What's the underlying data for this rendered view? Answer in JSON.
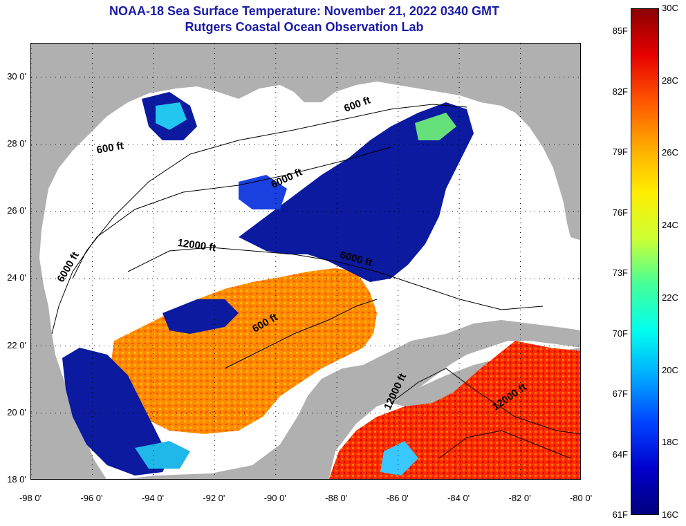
{
  "header": {
    "title": "NOAA-18 Sea Surface Temperature:  November 21, 2022 0340 GMT",
    "subtitle": "Rutgers Coastal Ocean Observation Lab"
  },
  "map": {
    "lon_range": [
      -98,
      -80
    ],
    "lat_range": [
      18,
      31
    ],
    "lat_ticks": [
      {
        "value": 18,
        "label": "18 0'"
      },
      {
        "value": 20,
        "label": "20 0'"
      },
      {
        "value": 22,
        "label": "22 0'"
      },
      {
        "value": 24,
        "label": "24 0'"
      },
      {
        "value": 26,
        "label": "26 0'"
      },
      {
        "value": 28,
        "label": "28 0'"
      },
      {
        "value": 30,
        "label": "30 0'"
      }
    ],
    "lon_ticks": [
      {
        "value": -98,
        "label": "-98 0'"
      },
      {
        "value": -96,
        "label": "-96 0'"
      },
      {
        "value": -94,
        "label": "-94 0'"
      },
      {
        "value": -92,
        "label": "-92 0'"
      },
      {
        "value": -90,
        "label": "-90 0'"
      },
      {
        "value": -88,
        "label": "-88 0'"
      },
      {
        "value": -86,
        "label": "-86 0'"
      },
      {
        "value": -84,
        "label": "-84 0'"
      },
      {
        "value": -82,
        "label": "-82 0'"
      },
      {
        "value": -80,
        "label": "-80 0'"
      }
    ],
    "depth_labels": [
      {
        "text": "600 ft",
        "lon": -87.3,
        "lat": 29.1,
        "angle": -20
      },
      {
        "text": "600 ft",
        "lon": -95.4,
        "lat": 27.8,
        "angle": -10
      },
      {
        "text": "6000 ft",
        "lon": -89.6,
        "lat": 26.9,
        "angle": -25
      },
      {
        "text": "12000 ft",
        "lon": -92.6,
        "lat": 24.9,
        "angle": 8
      },
      {
        "text": "6000 ft",
        "lon": -96.7,
        "lat": 24.3,
        "angle": -60
      },
      {
        "text": "6000 ft",
        "lon": -87.4,
        "lat": 24.5,
        "angle": 15
      },
      {
        "text": "600 ft",
        "lon": -90.3,
        "lat": 22.6,
        "angle": -30
      },
      {
        "text": "12000 ft",
        "lon": -86.0,
        "lat": 20.6,
        "angle": -65
      },
      {
        "text": "12000 ft",
        "lon": -82.3,
        "lat": 20.4,
        "angle": -35
      }
    ],
    "colors": {
      "land": "#b0b0b0",
      "cloud": "#ffffff",
      "contour": "#000000",
      "grid": "#000000"
    }
  },
  "colorbar": {
    "min_c": 16,
    "max_c": 30,
    "stops": [
      "#00007f",
      "#0000cc",
      "#0044ff",
      "#00aaff",
      "#00ffee",
      "#44ff99",
      "#ccff33",
      "#ffee00",
      "#ffaa00",
      "#ff5500",
      "#e60000",
      "#8b0000"
    ],
    "fahrenheit_labels": [
      "85F",
      "82F",
      "79F",
      "76F",
      "73F",
      "70F",
      "67F",
      "64F",
      "61F"
    ],
    "celsius_labels": [
      "30C",
      "28C",
      "26C",
      "24C",
      "22C",
      "20C",
      "18C",
      "16C"
    ]
  }
}
